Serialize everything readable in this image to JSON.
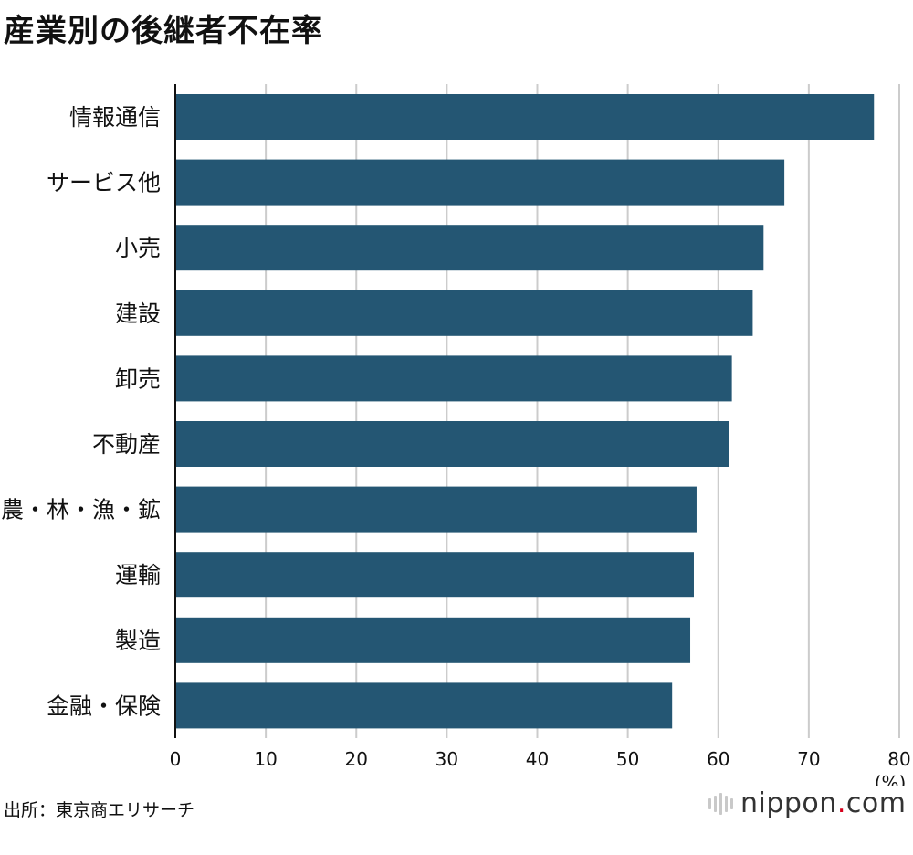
{
  "title": "産業別の後継者不在率",
  "source": "出所：東京商エリサーチ",
  "logo": {
    "name": "nippon",
    "dot": ".",
    "tld": "com"
  },
  "colors": {
    "bar": "#245673",
    "grid": "#cccccc",
    "axis": "#111111"
  },
  "chart_data": {
    "type": "bar",
    "orientation": "horizontal",
    "title": "産業別の後継者不在率",
    "categories": [
      "情報通信",
      "サービス他",
      "小売",
      "建設",
      "卸売",
      "不動産",
      "農・林・漁・鉱",
      "運輸",
      "製造",
      "金融・保険"
    ],
    "values": [
      77.2,
      67.3,
      65.0,
      63.8,
      61.5,
      61.2,
      57.6,
      57.3,
      56.9,
      54.9
    ],
    "xlim": [
      0,
      80
    ],
    "xticks": [
      0,
      10,
      20,
      30,
      40,
      50,
      60,
      70,
      80
    ],
    "unit": "(%)",
    "grid": true,
    "legend": "none"
  }
}
